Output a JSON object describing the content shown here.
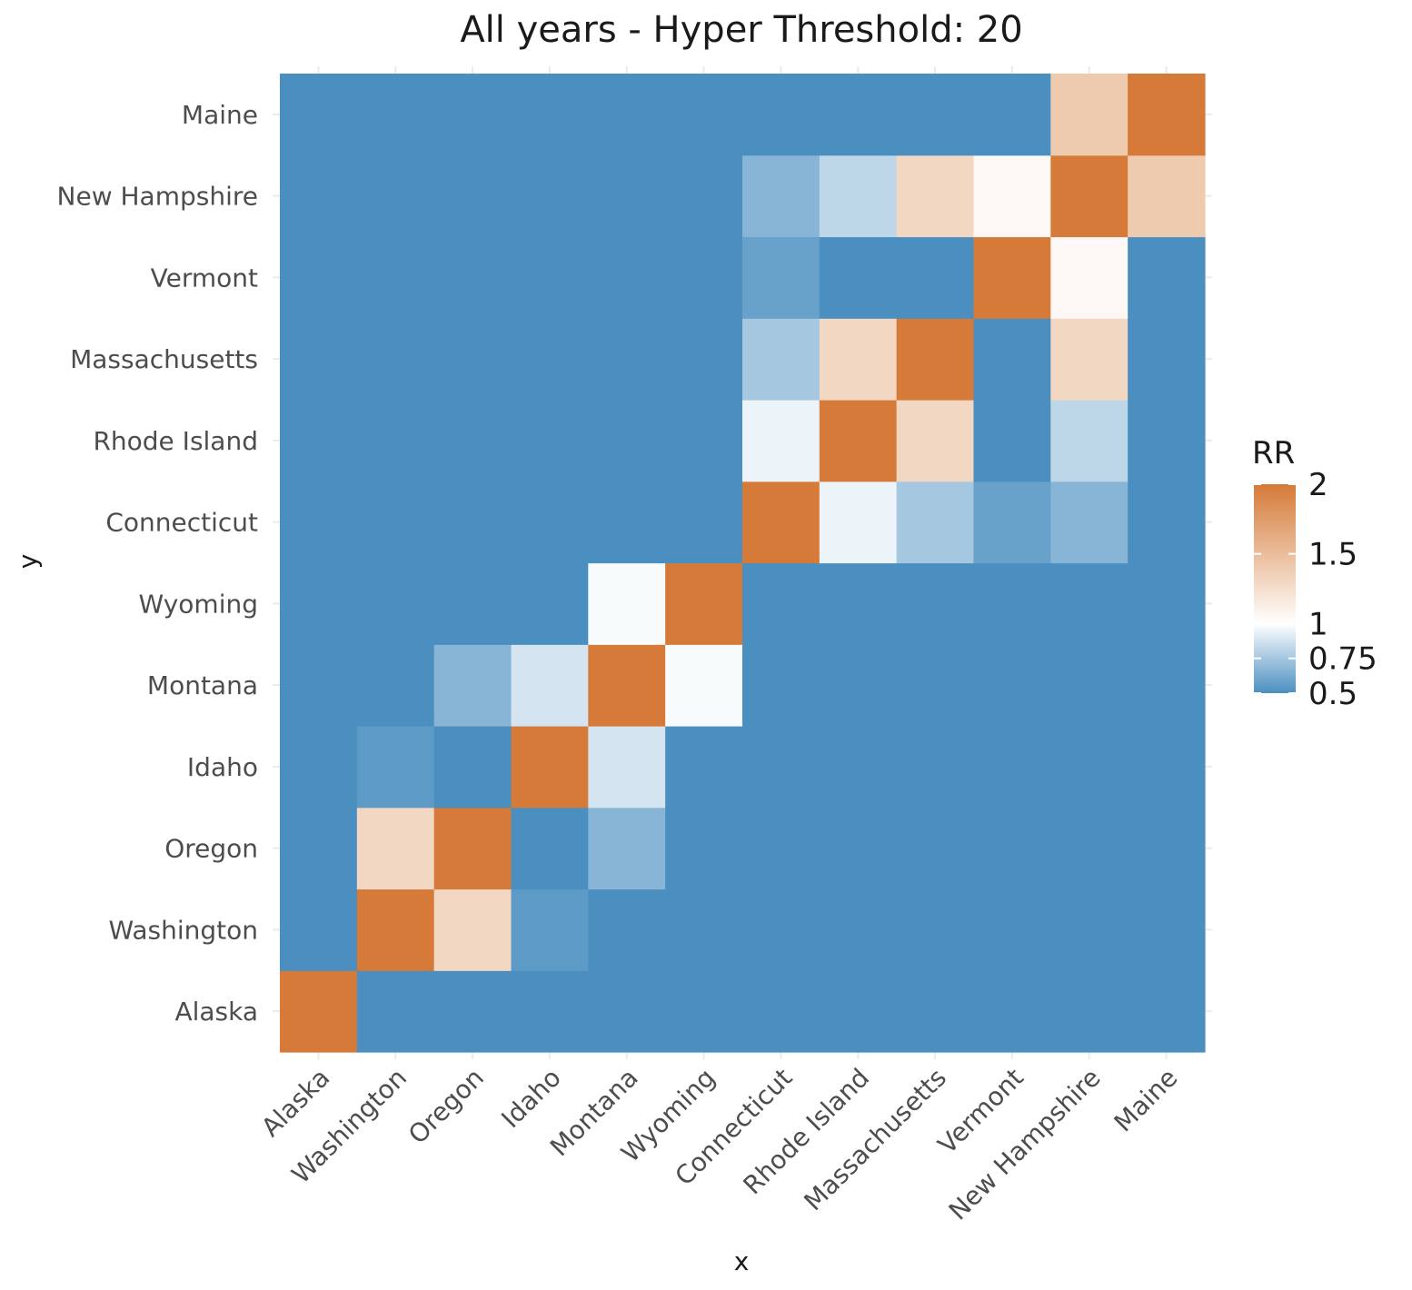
{
  "chart_data": {
    "type": "heatmap",
    "title": "All years - Hyper Threshold: 20",
    "xlabel": "x",
    "ylabel": "y",
    "x_categories": [
      "Alaska",
      "Washington",
      "Oregon",
      "Idaho",
      "Montana",
      "Wyoming",
      "Connecticut",
      "Rhode Island",
      "Massachusetts",
      "Vermont",
      "New Hampshire",
      "Maine"
    ],
    "y_categories_bottom_to_top": [
      "Alaska",
      "Washington",
      "Oregon",
      "Idaho",
      "Montana",
      "Wyoming",
      "Connecticut",
      "Rhode Island",
      "Massachusetts",
      "Vermont",
      "New Hampshire",
      "Maine"
    ],
    "values_rows_bottom_to_top": [
      [
        2,
        0.5,
        0.5,
        0.5,
        0.5,
        0.5,
        0.5,
        0.5,
        0.5,
        0.5,
        0.5,
        0.5
      ],
      [
        0.5,
        2,
        1.3,
        0.55,
        0.5,
        0.5,
        0.5,
        0.5,
        0.5,
        0.5,
        0.5,
        0.5
      ],
      [
        0.5,
        1.3,
        2,
        0.5,
        0.67,
        0.5,
        0.5,
        0.5,
        0.5,
        0.5,
        0.5,
        0.5
      ],
      [
        0.5,
        0.55,
        0.5,
        2,
        0.88,
        0.5,
        0.5,
        0.5,
        0.5,
        0.5,
        0.5,
        0.5
      ],
      [
        0.5,
        0.5,
        0.67,
        0.88,
        2,
        0.98,
        0.5,
        0.5,
        0.5,
        0.5,
        0.5,
        0.5
      ],
      [
        0.5,
        0.5,
        0.5,
        0.5,
        0.98,
        2,
        0.5,
        0.5,
        0.5,
        0.5,
        0.5,
        0.5
      ],
      [
        0.5,
        0.5,
        0.5,
        0.5,
        0.5,
        0.5,
        2,
        0.95,
        0.75,
        0.58,
        0.67,
        0.5
      ],
      [
        0.5,
        0.5,
        0.5,
        0.5,
        0.5,
        0.5,
        0.95,
        2,
        1.3,
        0.5,
        0.82,
        0.5
      ],
      [
        0.5,
        0.5,
        0.5,
        0.5,
        0.5,
        0.5,
        0.75,
        1.3,
        2,
        0.5,
        1.3,
        0.5
      ],
      [
        0.5,
        0.5,
        0.5,
        0.5,
        0.5,
        0.5,
        0.58,
        0.5,
        0.5,
        2,
        1.05,
        0.5
      ],
      [
        0.5,
        0.5,
        0.5,
        0.5,
        0.5,
        0.5,
        0.67,
        0.82,
        1.3,
        1.05,
        2,
        1.4
      ],
      [
        0.5,
        0.5,
        0.5,
        0.5,
        0.5,
        0.5,
        0.5,
        0.5,
        0.5,
        0.5,
        1.4,
        2
      ]
    ],
    "color_scale": {
      "name": "RR",
      "type": "diverging",
      "min": 0.5,
      "mid": 1,
      "max": 2,
      "low_color": "#4b8fc0",
      "mid_color": "#ffffff",
      "high_color": "#d57a38",
      "breaks": [
        0.5,
        0.75,
        1,
        1.5,
        2
      ],
      "break_labels": [
        "0.5",
        "0.75",
        "1",
        "1.5",
        "2"
      ]
    },
    "grid": true,
    "legend_position": "right"
  }
}
